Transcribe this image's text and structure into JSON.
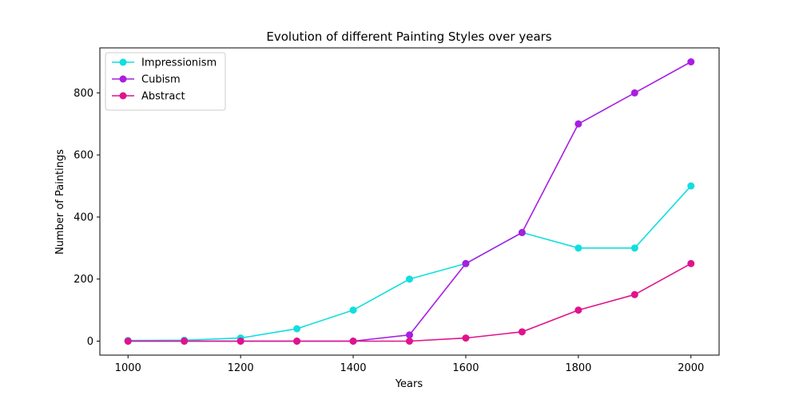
{
  "chart_data": {
    "type": "line",
    "title": "Evolution of different Painting Styles over years",
    "xlabel": "Years",
    "ylabel": "Number of Paintings",
    "x": [
      1000,
      1100,
      1200,
      1300,
      1400,
      1500,
      1600,
      1700,
      1800,
      1900,
      2000
    ],
    "xlim": [
      950,
      2050
    ],
    "ylim": [
      -45,
      945
    ],
    "xticks": [
      1000,
      1200,
      1400,
      1600,
      1800,
      2000
    ],
    "yticks": [
      0,
      200,
      400,
      600,
      800
    ],
    "grid": false,
    "legend_position": "top-left",
    "series": [
      {
        "name": "Impressionism",
        "color": "#11dede",
        "values": [
          2,
          3,
          10,
          40,
          100,
          200,
          250,
          350,
          300,
          300,
          500
        ]
      },
      {
        "name": "Cubism",
        "color": "#a81ee2",
        "values": [
          0,
          0,
          0,
          0,
          0,
          20,
          250,
          350,
          700,
          800,
          900
        ]
      },
      {
        "name": "Abstract",
        "color": "#e0138c",
        "values": [
          0,
          0,
          0,
          0,
          0,
          0,
          10,
          30,
          100,
          150,
          250
        ]
      }
    ]
  }
}
